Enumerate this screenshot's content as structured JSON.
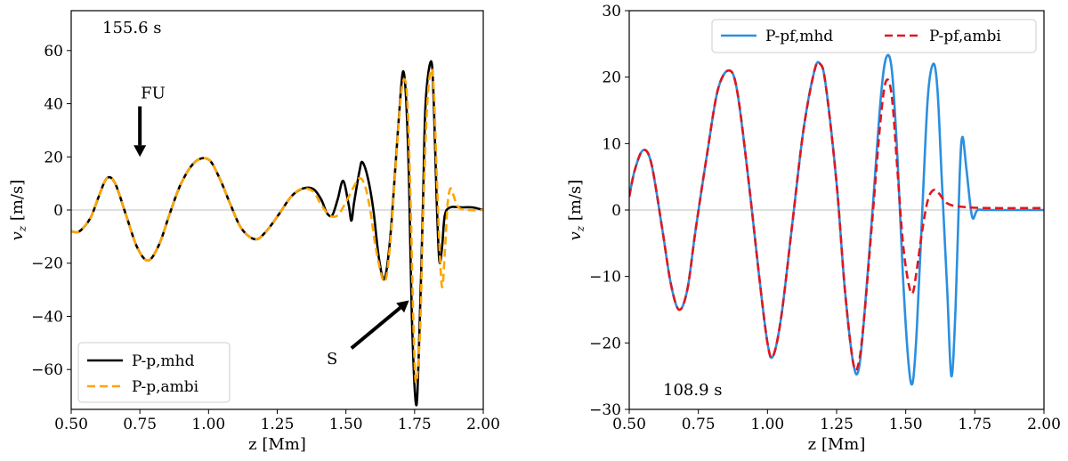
{
  "chart_data": [
    {
      "type": "line",
      "xlabel": "z [Mm]",
      "ylabel": "v_z [m/s]",
      "ylabel_main": "v",
      "ylabel_sub": "z",
      "ylabel_unit": " [m/s]",
      "xlim": [
        0.5,
        2.0
      ],
      "ylim": [
        -75,
        75
      ],
      "x_ticks": [
        0.5,
        0.75,
        1.0,
        1.25,
        1.5,
        1.75,
        2.0
      ],
      "x_tick_labels": [
        "0.50",
        "0.75",
        "1.00",
        "1.25",
        "1.50",
        "1.75",
        "2.00"
      ],
      "y_ticks": [
        -60,
        -40,
        -20,
        0,
        20,
        40,
        60
      ],
      "y_tick_labels": [
        "−60",
        "−40",
        "−20",
        "0",
        "20",
        "40",
        "60"
      ],
      "time_label": "155.6 s",
      "annotations": [
        {
          "text": "FU",
          "x": 0.75,
          "y": 42,
          "arrow_from": [
            0.75,
            39
          ],
          "arrow_to": [
            0.75,
            20
          ]
        },
        {
          "text": "S",
          "x": 1.45,
          "y": -58,
          "arrow_from": [
            1.52,
            -52
          ],
          "arrow_to": [
            1.73,
            -34
          ]
        }
      ],
      "legend_loc": "lower-left",
      "zero_line": true,
      "series": [
        {
          "name": "P-p,mhd",
          "color": "#000000",
          "style": "solid",
          "points": [
            [
              0.5,
              -8
            ],
            [
              0.53,
              -8
            ],
            [
              0.57,
              -3
            ],
            [
              0.6,
              5
            ],
            [
              0.63,
              12
            ],
            [
              0.66,
              10
            ],
            [
              0.7,
              -2
            ],
            [
              0.74,
              -14
            ],
            [
              0.78,
              -19
            ],
            [
              0.82,
              -13
            ],
            [
              0.86,
              -1
            ],
            [
              0.9,
              10
            ],
            [
              0.95,
              18
            ],
            [
              1.0,
              19
            ],
            [
              1.04,
              12
            ],
            [
              1.08,
              2
            ],
            [
              1.12,
              -7
            ],
            [
              1.17,
              -11
            ],
            [
              1.21,
              -8
            ],
            [
              1.26,
              -1
            ],
            [
              1.3,
              5
            ],
            [
              1.34,
              8
            ],
            [
              1.38,
              8
            ],
            [
              1.41,
              4
            ],
            [
              1.43,
              -1
            ],
            [
              1.45,
              -2
            ],
            [
              1.47,
              4
            ],
            [
              1.49,
              11
            ],
            [
              1.51,
              2
            ],
            [
              1.52,
              -4
            ],
            [
              1.53,
              3
            ],
            [
              1.55,
              15
            ],
            [
              1.56,
              18
            ],
            [
              1.58,
              12
            ],
            [
              1.6,
              0
            ],
            [
              1.62,
              -18
            ],
            [
              1.64,
              -26
            ],
            [
              1.66,
              -12
            ],
            [
              1.68,
              16
            ],
            [
              1.7,
              45
            ],
            [
              1.71,
              52
            ],
            [
              1.72,
              40
            ],
            [
              1.73,
              10
            ],
            [
              1.74,
              -40
            ],
            [
              1.755,
              -73
            ],
            [
              1.765,
              -55
            ],
            [
              1.78,
              0
            ],
            [
              1.79,
              40
            ],
            [
              1.81,
              56
            ],
            [
              1.82,
              40
            ],
            [
              1.83,
              5
            ],
            [
              1.84,
              -19
            ],
            [
              1.85,
              -14
            ],
            [
              1.86,
              -2
            ],
            [
              1.88,
              1
            ],
            [
              1.92,
              1
            ],
            [
              1.96,
              1
            ],
            [
              2.0,
              0
            ]
          ]
        },
        {
          "name": "P-p,ambi",
          "color": "#ffa500",
          "style": "dashed",
          "points": [
            [
              0.5,
              -8
            ],
            [
              0.53,
              -8
            ],
            [
              0.57,
              -3
            ],
            [
              0.6,
              5
            ],
            [
              0.63,
              12
            ],
            [
              0.66,
              10
            ],
            [
              0.7,
              -2
            ],
            [
              0.74,
              -14
            ],
            [
              0.78,
              -19
            ],
            [
              0.82,
              -13
            ],
            [
              0.86,
              -1
            ],
            [
              0.9,
              10
            ],
            [
              0.95,
              18
            ],
            [
              1.0,
              19
            ],
            [
              1.04,
              12
            ],
            [
              1.08,
              2
            ],
            [
              1.12,
              -7
            ],
            [
              1.17,
              -11
            ],
            [
              1.21,
              -8
            ],
            [
              1.26,
              -1
            ],
            [
              1.3,
              5
            ],
            [
              1.34,
              8
            ],
            [
              1.38,
              7
            ],
            [
              1.41,
              2
            ],
            [
              1.44,
              -2
            ],
            [
              1.47,
              -2
            ],
            [
              1.5,
              3
            ],
            [
              1.53,
              9
            ],
            [
              1.55,
              12
            ],
            [
              1.57,
              9
            ],
            [
              1.59,
              -1
            ],
            [
              1.61,
              -15
            ],
            [
              1.64,
              -27
            ],
            [
              1.66,
              -14
            ],
            [
              1.68,
              15
            ],
            [
              1.7,
              43
            ],
            [
              1.715,
              49
            ],
            [
              1.725,
              38
            ],
            [
              1.735,
              5
            ],
            [
              1.745,
              -40
            ],
            [
              1.755,
              -65
            ],
            [
              1.77,
              -45
            ],
            [
              1.78,
              -5
            ],
            [
              1.795,
              38
            ],
            [
              1.81,
              53
            ],
            [
              1.82,
              45
            ],
            [
              1.83,
              15
            ],
            [
              1.84,
              -12
            ],
            [
              1.85,
              -29
            ],
            [
              1.86,
              -16
            ],
            [
              1.87,
              2
            ],
            [
              1.88,
              8
            ],
            [
              1.89,
              6
            ],
            [
              1.91,
              1
            ],
            [
              1.95,
              0
            ],
            [
              2.0,
              0
            ]
          ]
        }
      ]
    },
    {
      "type": "line",
      "xlabel": "z [Mm]",
      "ylabel": "v_z [m/s]",
      "ylabel_main": "v",
      "ylabel_sub": "z",
      "ylabel_unit": " [m/s]",
      "xlim": [
        0.5,
        2.0
      ],
      "ylim": [
        -30,
        30
      ],
      "x_ticks": [
        0.5,
        0.75,
        1.0,
        1.25,
        1.5,
        1.75,
        2.0
      ],
      "x_tick_labels": [
        "0.50",
        "0.75",
        "1.00",
        "1.25",
        "1.50",
        "1.75",
        "2.00"
      ],
      "y_ticks": [
        -30,
        -20,
        -10,
        0,
        10,
        20,
        30
      ],
      "y_tick_labels": [
        "−30",
        "−20",
        "−10",
        "0",
        "10",
        "20",
        "30"
      ],
      "time_label": "108.9 s",
      "legend_loc": "top-right",
      "zero_line": true,
      "series": [
        {
          "name": "P-pf,mhd",
          "color": "#2a8fe0",
          "style": "solid",
          "points": [
            [
              0.5,
              2
            ],
            [
              0.52,
              6
            ],
            [
              0.55,
              9
            ],
            [
              0.58,
              7
            ],
            [
              0.62,
              -3
            ],
            [
              0.65,
              -11
            ],
            [
              0.68,
              -15
            ],
            [
              0.71,
              -12
            ],
            [
              0.74,
              -3
            ],
            [
              0.78,
              8
            ],
            [
              0.82,
              18
            ],
            [
              0.86,
              21
            ],
            [
              0.89,
              18
            ],
            [
              0.93,
              5
            ],
            [
              0.97,
              -10
            ],
            [
              1.0,
              -20
            ],
            [
              1.02,
              -22
            ],
            [
              1.05,
              -16
            ],
            [
              1.09,
              -2
            ],
            [
              1.13,
              12
            ],
            [
              1.17,
              21
            ],
            [
              1.19,
              22
            ],
            [
              1.21,
              19
            ],
            [
              1.25,
              4
            ],
            [
              1.28,
              -12
            ],
            [
              1.31,
              -23
            ],
            [
              1.33,
              -24
            ],
            [
              1.35,
              -16
            ],
            [
              1.38,
              0
            ],
            [
              1.41,
              17
            ],
            [
              1.43,
              23
            ],
            [
              1.45,
              21
            ],
            [
              1.47,
              8
            ],
            [
              1.49,
              -10
            ],
            [
              1.51,
              -23
            ],
            [
              1.525,
              -26
            ],
            [
              1.54,
              -18
            ],
            [
              1.56,
              0
            ],
            [
              1.58,
              17
            ],
            [
              1.6,
              22
            ],
            [
              1.615,
              18
            ],
            [
              1.63,
              5
            ],
            [
              1.65,
              -12
            ],
            [
              1.665,
              -25
            ],
            [
              1.68,
              -15
            ],
            [
              1.695,
              5
            ],
            [
              1.705,
              11
            ],
            [
              1.72,
              6
            ],
            [
              1.74,
              -1
            ],
            [
              1.76,
              0
            ],
            [
              1.8,
              0
            ],
            [
              2.0,
              0
            ]
          ]
        },
        {
          "name": "P-pf,ambi",
          "color": "#e0161e",
          "style": "dashed",
          "points": [
            [
              0.5,
              2
            ],
            [
              0.52,
              6
            ],
            [
              0.55,
              9
            ],
            [
              0.58,
              7
            ],
            [
              0.62,
              -3
            ],
            [
              0.65,
              -11
            ],
            [
              0.68,
              -15
            ],
            [
              0.71,
              -12
            ],
            [
              0.74,
              -3
            ],
            [
              0.78,
              8
            ],
            [
              0.82,
              18
            ],
            [
              0.86,
              21
            ],
            [
              0.89,
              18
            ],
            [
              0.93,
              5
            ],
            [
              0.97,
              -10
            ],
            [
              1.0,
              -20
            ],
            [
              1.02,
              -22
            ],
            [
              1.05,
              -16
            ],
            [
              1.09,
              -2
            ],
            [
              1.13,
              12
            ],
            [
              1.17,
              21
            ],
            [
              1.19,
              22
            ],
            [
              1.21,
              19
            ],
            [
              1.25,
              4
            ],
            [
              1.28,
              -12
            ],
            [
              1.31,
              -23
            ],
            [
              1.33,
              -23
            ],
            [
              1.35,
              -16
            ],
            [
              1.38,
              -1
            ],
            [
              1.41,
              14
            ],
            [
              1.43,
              19.5
            ],
            [
              1.45,
              17
            ],
            [
              1.47,
              6
            ],
            [
              1.49,
              -5
            ],
            [
              1.51,
              -11
            ],
            [
              1.525,
              -12.5
            ],
            [
              1.54,
              -9
            ],
            [
              1.56,
              -3
            ],
            [
              1.58,
              1.5
            ],
            [
              1.6,
              3
            ],
            [
              1.62,
              2.5
            ],
            [
              1.65,
              1
            ],
            [
              1.7,
              0.5
            ],
            [
              1.8,
              0.3
            ],
            [
              2.0,
              0.3
            ]
          ]
        }
      ]
    }
  ]
}
